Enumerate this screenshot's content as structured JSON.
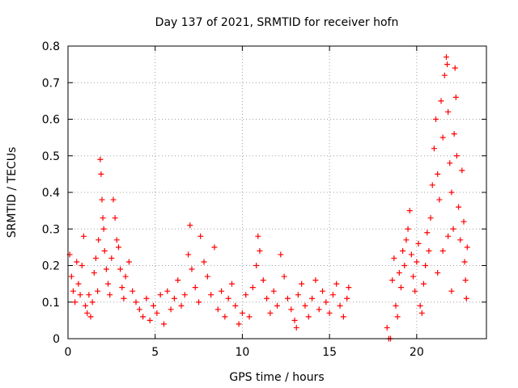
{
  "chart_data": {
    "type": "scatter",
    "title": "Day 137 of 2021, SRMTID for receiver hofn",
    "xlabel": "GPS time / hours",
    "ylabel": "SRMTID / TECUs",
    "xlim": [
      0,
      24
    ],
    "ylim": [
      0,
      0.8
    ],
    "xticks": [
      0,
      5,
      10,
      15,
      20
    ],
    "yticks": [
      0,
      0.1,
      0.2,
      0.3,
      0.4,
      0.5,
      0.6,
      0.7,
      0.8
    ],
    "grid": true,
    "marker": "+",
    "series_color": "#ff0000",
    "marker_note": "dense point cloud; values below are sampled estimates of visible '+' markers",
    "points": [
      [
        0.1,
        0.23
      ],
      [
        0.2,
        0.17
      ],
      [
        0.3,
        0.13
      ],
      [
        0.4,
        0.1
      ],
      [
        0.5,
        0.21
      ],
      [
        0.6,
        0.15
      ],
      [
        0.7,
        0.12
      ],
      [
        0.8,
        0.2
      ],
      [
        0.9,
        0.28
      ],
      [
        1.0,
        0.09
      ],
      [
        1.1,
        0.07
      ],
      [
        1.2,
        0.12
      ],
      [
        1.3,
        0.06
      ],
      [
        1.4,
        0.1
      ],
      [
        1.5,
        0.18
      ],
      [
        1.6,
        0.22
      ],
      [
        1.7,
        0.13
      ],
      [
        1.75,
        0.27
      ],
      [
        1.85,
        0.49
      ],
      [
        1.9,
        0.45
      ],
      [
        1.95,
        0.38
      ],
      [
        2.0,
        0.33
      ],
      [
        2.05,
        0.3
      ],
      [
        2.1,
        0.24
      ],
      [
        2.2,
        0.19
      ],
      [
        2.3,
        0.15
      ],
      [
        2.4,
        0.12
      ],
      [
        2.5,
        0.22
      ],
      [
        2.6,
        0.38
      ],
      [
        2.7,
        0.33
      ],
      [
        2.8,
        0.27
      ],
      [
        2.9,
        0.25
      ],
      [
        3.0,
        0.19
      ],
      [
        3.1,
        0.14
      ],
      [
        3.2,
        0.11
      ],
      [
        3.3,
        0.17
      ],
      [
        3.5,
        0.21
      ],
      [
        3.7,
        0.13
      ],
      [
        3.9,
        0.1
      ],
      [
        4.1,
        0.08
      ],
      [
        4.3,
        0.06
      ],
      [
        4.5,
        0.11
      ],
      [
        4.7,
        0.05
      ],
      [
        4.9,
        0.09
      ],
      [
        5.1,
        0.07
      ],
      [
        5.3,
        0.12
      ],
      [
        5.5,
        0.04
      ],
      [
        5.7,
        0.13
      ],
      [
        5.9,
        0.08
      ],
      [
        6.1,
        0.11
      ],
      [
        6.3,
        0.16
      ],
      [
        6.5,
        0.09
      ],
      [
        6.7,
        0.12
      ],
      [
        6.9,
        0.23
      ],
      [
        7.0,
        0.31
      ],
      [
        7.1,
        0.19
      ],
      [
        7.3,
        0.14
      ],
      [
        7.5,
        0.1
      ],
      [
        7.6,
        0.28
      ],
      [
        7.8,
        0.21
      ],
      [
        8.0,
        0.17
      ],
      [
        8.2,
        0.12
      ],
      [
        8.4,
        0.25
      ],
      [
        8.6,
        0.08
      ],
      [
        8.8,
        0.13
      ],
      [
        9.0,
        0.06
      ],
      [
        9.2,
        0.11
      ],
      [
        9.4,
        0.15
      ],
      [
        9.6,
        0.09
      ],
      [
        9.8,
        0.04
      ],
      [
        10.0,
        0.07
      ],
      [
        10.2,
        0.12
      ],
      [
        10.4,
        0.06
      ],
      [
        10.6,
        0.14
      ],
      [
        10.8,
        0.2
      ],
      [
        10.9,
        0.28
      ],
      [
        11.0,
        0.24
      ],
      [
        11.2,
        0.16
      ],
      [
        11.4,
        0.11
      ],
      [
        11.6,
        0.07
      ],
      [
        11.8,
        0.13
      ],
      [
        12.0,
        0.09
      ],
      [
        12.2,
        0.23
      ],
      [
        12.4,
        0.17
      ],
      [
        12.6,
        0.11
      ],
      [
        12.8,
        0.08
      ],
      [
        13.0,
        0.05
      ],
      [
        13.1,
        0.03
      ],
      [
        13.2,
        0.12
      ],
      [
        13.4,
        0.15
      ],
      [
        13.6,
        0.09
      ],
      [
        13.8,
        0.06
      ],
      [
        14.0,
        0.11
      ],
      [
        14.2,
        0.16
      ],
      [
        14.4,
        0.08
      ],
      [
        14.6,
        0.13
      ],
      [
        14.8,
        0.1
      ],
      [
        15.0,
        0.07
      ],
      [
        15.2,
        0.12
      ],
      [
        15.4,
        0.15
      ],
      [
        15.6,
        0.09
      ],
      [
        15.8,
        0.06
      ],
      [
        16.0,
        0.11
      ],
      [
        16.1,
        0.14
      ],
      [
        18.3,
        0.03
      ],
      [
        18.4,
        0.0
      ],
      [
        18.5,
        0.0
      ],
      [
        18.6,
        0.16
      ],
      [
        18.7,
        0.22
      ],
      [
        18.8,
        0.09
      ],
      [
        18.9,
        0.06
      ],
      [
        19.0,
        0.18
      ],
      [
        19.1,
        0.14
      ],
      [
        19.2,
        0.24
      ],
      [
        19.3,
        0.2
      ],
      [
        19.4,
        0.27
      ],
      [
        19.5,
        0.3
      ],
      [
        19.6,
        0.35
      ],
      [
        19.7,
        0.23
      ],
      [
        19.8,
        0.17
      ],
      [
        19.9,
        0.13
      ],
      [
        20.0,
        0.21
      ],
      [
        20.1,
        0.26
      ],
      [
        20.2,
        0.09
      ],
      [
        20.3,
        0.07
      ],
      [
        20.4,
        0.15
      ],
      [
        20.5,
        0.2
      ],
      [
        20.6,
        0.29
      ],
      [
        20.7,
        0.24
      ],
      [
        20.8,
        0.33
      ],
      [
        20.9,
        0.42
      ],
      [
        21.0,
        0.52
      ],
      [
        21.1,
        0.6
      ],
      [
        21.2,
        0.45
      ],
      [
        21.3,
        0.38
      ],
      [
        21.4,
        0.65
      ],
      [
        21.5,
        0.55
      ],
      [
        21.6,
        0.72
      ],
      [
        21.7,
        0.77
      ],
      [
        21.75,
        0.75
      ],
      [
        21.8,
        0.62
      ],
      [
        21.9,
        0.48
      ],
      [
        22.0,
        0.4
      ],
      [
        22.1,
        0.3
      ],
      [
        22.15,
        0.56
      ],
      [
        22.2,
        0.74
      ],
      [
        22.25,
        0.66
      ],
      [
        22.3,
        0.5
      ],
      [
        22.4,
        0.36
      ],
      [
        22.5,
        0.27
      ],
      [
        22.6,
        0.46
      ],
      [
        22.7,
        0.32
      ],
      [
        22.75,
        0.21
      ],
      [
        22.8,
        0.16
      ],
      [
        22.85,
        0.11
      ],
      [
        22.9,
        0.25
      ],
      [
        21.2,
        0.18
      ],
      [
        21.5,
        0.24
      ],
      [
        21.8,
        0.28
      ],
      [
        22.0,
        0.13
      ]
    ]
  }
}
